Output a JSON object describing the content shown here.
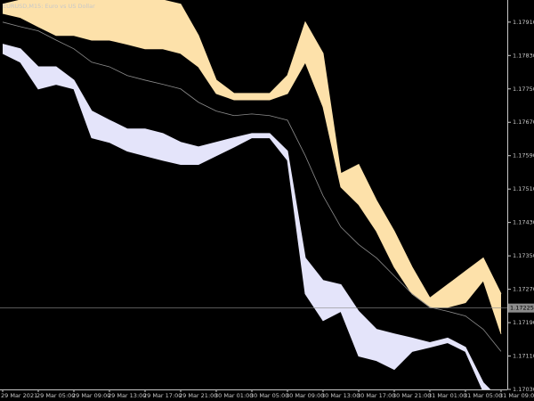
{
  "chart_data": {
    "type": "band",
    "title": "EURUSD,M15: Euro vs US Dollar",
    "categories": [
      "29 Mar 2021",
      null,
      "29 Mar 05:00",
      null,
      "29 Mar 09:00",
      null,
      "29 Mar 13:00",
      null,
      "29 Mar 17:00",
      null,
      "29 Mar 21:00",
      null,
      "30 Mar 01:00",
      null,
      "30 Mar 05:00",
      null,
      "30 Mar 09:00",
      null,
      "30 Mar 13:00",
      null,
      "30 Mar 17:00",
      null,
      "30 Mar 21:00",
      null,
      "31 Mar 01:00",
      null,
      "31 Mar 05:00",
      null,
      "31 Mar 09:00"
    ],
    "series": [
      {
        "color": "#fde1aa",
        "values": [
          1.17953,
          1.17963,
          1.17963,
          1.17963,
          1.17963,
          1.17963,
          1.17963,
          1.17963,
          1.17963,
          1.17963,
          1.17953,
          1.17878,
          1.17771,
          1.17739,
          1.17739,
          1.17739,
          1.17782,
          1.1791,
          1.17835,
          1.17547,
          1.17569,
          1.17483,
          1.17409,
          1.17323,
          1.17249,
          1.17281,
          1.17313,
          1.17345,
          1.17259
        ]
      },
      {
        "color": "#fde1aa",
        "values": [
          1.17931,
          1.17921,
          1.17899,
          1.17878,
          1.17878,
          1.17867,
          1.17867,
          1.17857,
          1.17846,
          1.17846,
          1.17835,
          1.17803,
          1.17739,
          1.17724,
          1.17724,
          1.17724,
          1.17739,
          1.17814,
          1.17707,
          1.17515,
          1.17473,
          1.17409,
          1.17323,
          1.17259,
          1.17227,
          1.17227,
          1.17238,
          1.17291,
          1.17163
        ]
      },
      {
        "color": "#e4e4fa",
        "values": [
          1.17857,
          1.17846,
          1.17803,
          1.17803,
          1.17771,
          1.17697,
          1.17675,
          1.17654,
          1.17654,
          1.17643,
          1.17622,
          1.17611,
          1.17622,
          1.17633,
          1.17643,
          1.17643,
          1.17601,
          1.17345,
          1.17291,
          1.17281,
          1.17217,
          1.17174,
          1.17163,
          1.17153,
          1.17142,
          1.17153,
          1.17131,
          1.17046,
          1.17003
        ]
      },
      {
        "color": "#e4e4fa",
        "values": [
          1.17835,
          1.17814,
          1.1775,
          1.17761,
          1.1775,
          1.17633,
          1.17622,
          1.17601,
          1.1759,
          1.17579,
          1.17569,
          1.17569,
          1.1759,
          1.17611,
          1.17633,
          1.17633,
          1.17579,
          1.17259,
          1.17195,
          1.17217,
          1.1711,
          1.17099,
          1.17078,
          1.17121,
          1.17131,
          1.17142,
          1.17121,
          1.17025,
          1.16982
        ]
      },
      {
        "color": "#8c8c8c",
        "values": [
          1.1791,
          1.17899,
          1.17889,
          1.17867,
          1.17846,
          1.17814,
          1.17803,
          1.17782,
          1.17771,
          1.17761,
          1.1775,
          1.17718,
          1.17697,
          1.17686,
          1.1769,
          1.17686,
          1.17675,
          1.1759,
          1.17494,
          1.17419,
          1.17377,
          1.17345,
          1.17302,
          1.17259,
          1.17227,
          1.17217,
          1.17206,
          1.17174,
          1.17121
        ]
      }
    ],
    "ylim": [
      1.1703,
      1.17963
    ],
    "yticks": [
      {
        "value": 1.1791,
        "label": "1.17910"
      },
      {
        "value": 1.1783,
        "label": "1.17830"
      },
      {
        "value": 1.1775,
        "label": "1.17750"
      },
      {
        "value": 1.1767,
        "label": "1.17670"
      },
      {
        "value": 1.1759,
        "label": "1.17590"
      },
      {
        "value": 1.1751,
        "label": "1.17510"
      },
      {
        "value": 1.1743,
        "label": "1.17430"
      },
      {
        "value": 1.1735,
        "label": "1.17350"
      },
      {
        "value": 1.1727,
        "label": "1.17270"
      },
      {
        "value": 1.1719,
        "label": "1.17190"
      },
      {
        "value": 1.1711,
        "label": "1.17110"
      },
      {
        "value": 1.1703,
        "label": "1.17030"
      }
    ],
    "current_price": {
      "value": 1.17225,
      "label": "1.17225"
    },
    "grid": false
  }
}
